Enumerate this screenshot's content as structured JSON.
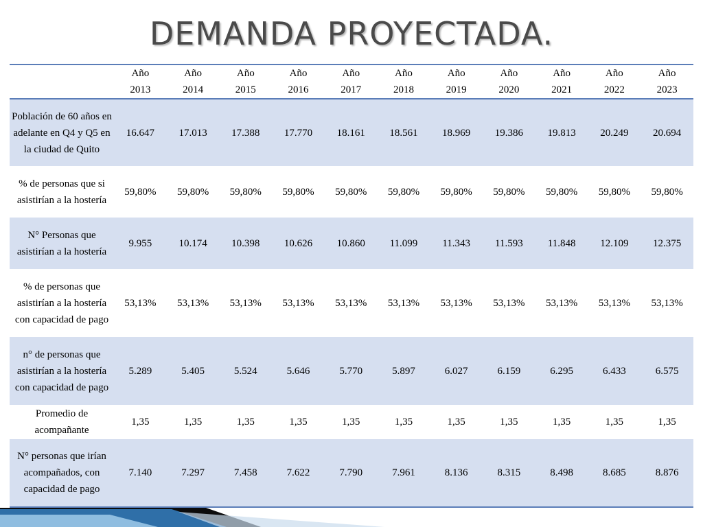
{
  "title": "DEMANDA PROYECTADA.",
  "table": {
    "header": [
      {
        "a": "Año",
        "b": "2013"
      },
      {
        "a": "Año",
        "b": "2014"
      },
      {
        "a": "Año",
        "b": "2015"
      },
      {
        "a": "Año",
        "b": "2016"
      },
      {
        "a": "Año",
        "b": "2017"
      },
      {
        "a": "Año",
        "b": "2018"
      },
      {
        "a": "Año",
        "b": "2019"
      },
      {
        "a": "Año",
        "b": "2020"
      },
      {
        "a": "Año",
        "b": "2021"
      },
      {
        "a": "Año",
        "b": "2022"
      },
      {
        "a": "Año",
        "b": "2023"
      }
    ],
    "rows": [
      {
        "label": "Población de 60 años en adelante en Q4 y Q5 en la ciudad de Quito",
        "values": [
          "16.647",
          "17.013",
          "17.388",
          "17.770",
          "18.161",
          "18.561",
          "18.969",
          "19.386",
          "19.813",
          "20.249",
          "20.694"
        ]
      },
      {
        "label": "% de personas que si asistirían a la hostería",
        "values": [
          "59,80%",
          "59,80%",
          "59,80%",
          "59,80%",
          "59,80%",
          "59,80%",
          "59,80%",
          "59,80%",
          "59,80%",
          "59,80%",
          "59,80%"
        ]
      },
      {
        "label": "N° Personas que asistirían a la hostería",
        "values": [
          "9.955",
          "10.174",
          "10.398",
          "10.626",
          "10.860",
          "11.099",
          "11.343",
          "11.593",
          "11.848",
          "12.109",
          "12.375"
        ]
      },
      {
        "label": "% de personas que asistirían a la hostería con capacidad de pago",
        "values": [
          "53,13%",
          "53,13%",
          "53,13%",
          "53,13%",
          "53,13%",
          "53,13%",
          "53,13%",
          "53,13%",
          "53,13%",
          "53,13%",
          "53,13%"
        ]
      },
      {
        "label": "n° de personas que asistirían a la hostería con capacidad de pago",
        "values": [
          "5.289",
          "5.405",
          "5.524",
          "5.646",
          "5.770",
          "5.897",
          "6.027",
          "6.159",
          "6.295",
          "6.433",
          "6.575"
        ]
      },
      {
        "label": "Promedio de acompañante",
        "values": [
          "1,35",
          "1,35",
          "1,35",
          "1,35",
          "1,35",
          "1,35",
          "1,35",
          "1,35",
          "1,35",
          "1,35",
          "1,35"
        ]
      },
      {
        "label": "N° personas que irían acompañados, con capacidad de pago",
        "values": [
          "7.140",
          "7.297",
          "7.458",
          "7.622",
          "7.790",
          "7.961",
          "8.136",
          "8.315",
          "8.498",
          "8.685",
          "8.876"
        ]
      }
    ]
  },
  "colors": {
    "title": "#4a4a4a",
    "shade": "#d6dff0",
    "rule": "#5b7db8",
    "accent_dark": "#0b0b0b",
    "accent_blue": "#2f6fa8"
  }
}
